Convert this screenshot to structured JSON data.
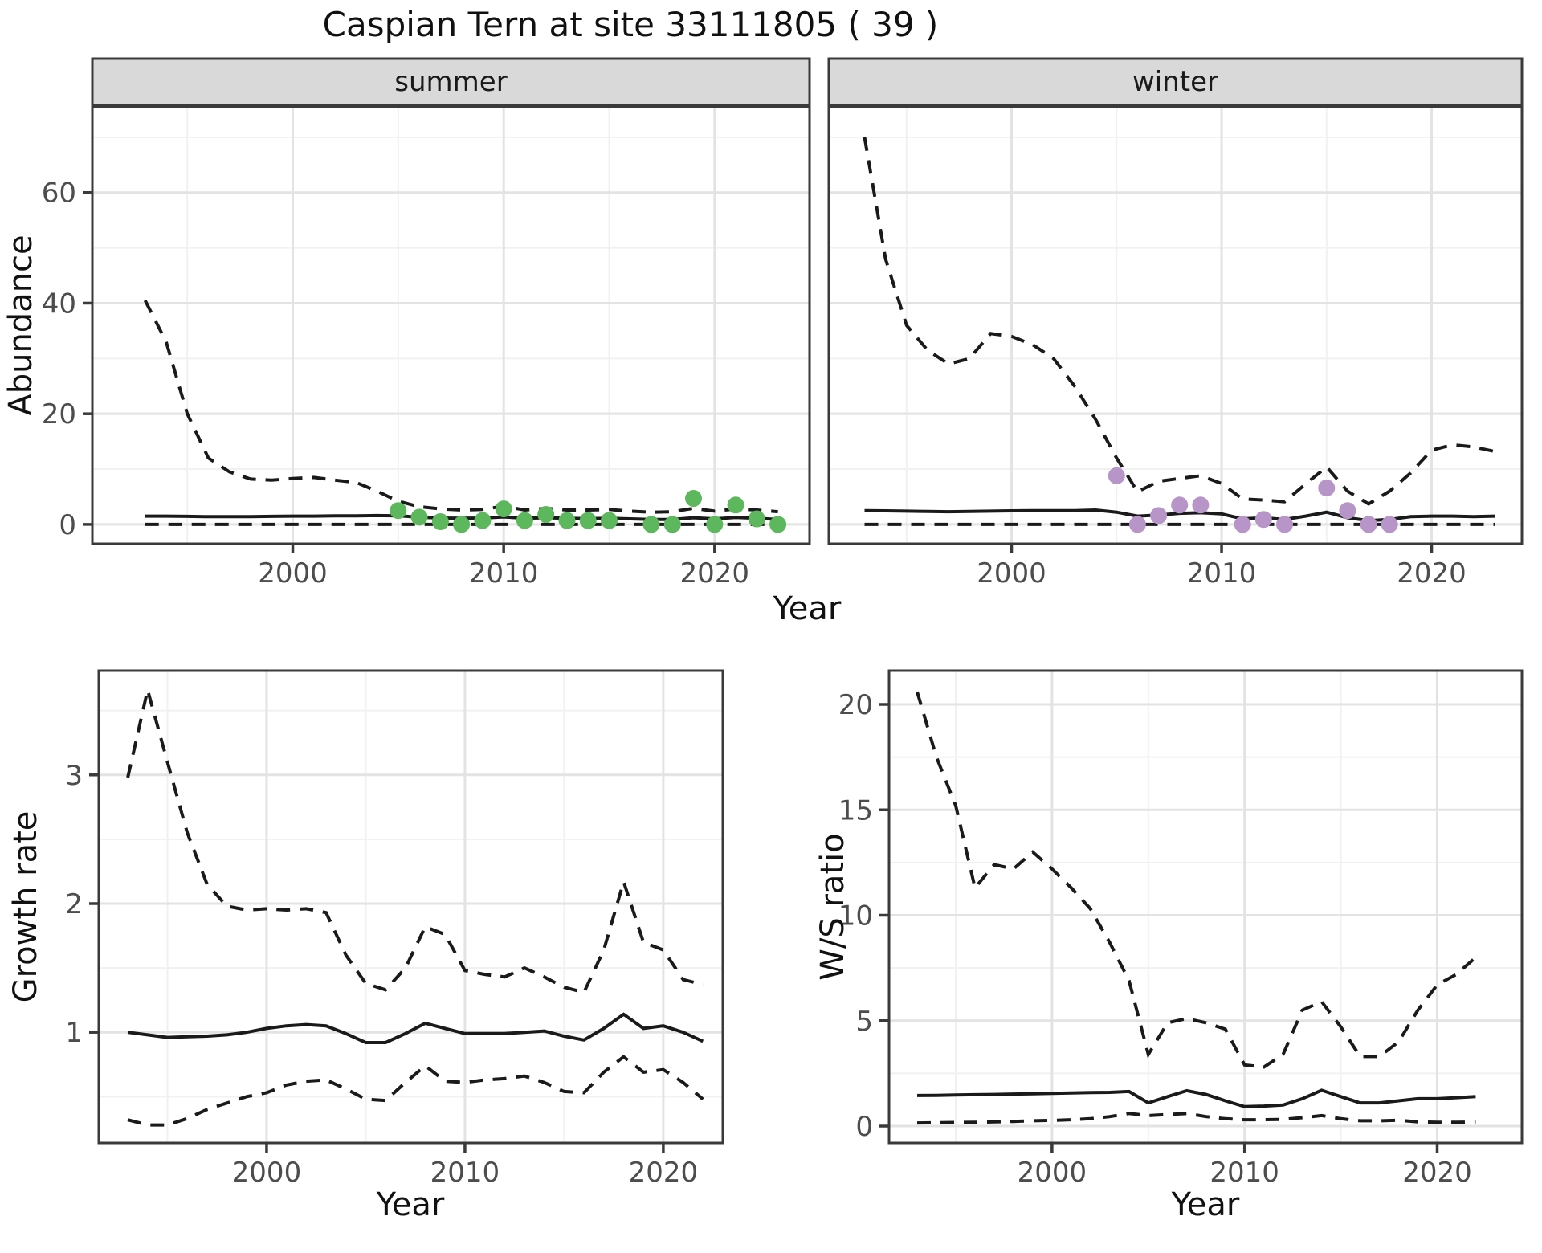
{
  "figure": {
    "title": "Caspian Tern at site 33111805 ( 39 )",
    "background": "#ffffff"
  },
  "labels": {
    "strip_summer": "summer",
    "strip_winter": "winter",
    "ylabel_abundance": "Abundance",
    "ylabel_growth": "Growth rate",
    "ylabel_ws": "W/S ratio",
    "xlabel_year_top": "Year",
    "xlabel_year_growth": "Year",
    "xlabel_year_ws": "Year"
  },
  "colors": {
    "summer_points": "#5db75c",
    "winter_points": "#b795c8",
    "line": "#1a1a1a",
    "strip_bg": "#d9d9d9",
    "panel_border": "#3a3a3a",
    "grid_major": "#e3e3e3",
    "grid_minor": "#f1f1f1",
    "tick_text": "#4d4d4d"
  },
  "chart_data": [
    {
      "id": "abundance-summer",
      "type": "line",
      "facet": "summer",
      "title": "Caspian Tern at site 33111805 ( 39 )",
      "xlabel": "Year",
      "ylabel": "Abundance",
      "legend_position": "none",
      "grid": true,
      "xlim": [
        1990.5,
        2024.5
      ],
      "ylim": [
        -3.5,
        75.5
      ],
      "xticks": [
        2000,
        2010,
        2020
      ],
      "xminor": [
        1995,
        2005,
        2015
      ],
      "yticks": [
        0,
        20,
        40,
        60
      ],
      "yminor": [
        10,
        30,
        50,
        70
      ],
      "y_labels": true,
      "series": [
        {
          "name": "upper_95ci",
          "style": "dashed",
          "x": [
            1993,
            1994,
            1995,
            1996,
            1997,
            1998,
            1999,
            2000,
            2001,
            2002,
            2003,
            2004,
            2005,
            2006,
            2007,
            2008,
            2009,
            2010,
            2011,
            2012,
            2013,
            2014,
            2015,
            2016,
            2017,
            2018,
            2019,
            2020,
            2021,
            2022,
            2023
          ],
          "y": [
            40.5,
            33,
            20,
            12,
            9.5,
            8.2,
            8.0,
            8.3,
            8.5,
            8.0,
            7.6,
            6.0,
            4.2,
            3.2,
            2.8,
            2.6,
            2.7,
            3.3,
            2.6,
            2.9,
            2.6,
            2.6,
            2.7,
            2.4,
            2.2,
            2.3,
            2.9,
            2.4,
            2.8,
            2.6,
            2.3
          ]
        },
        {
          "name": "median",
          "style": "solid",
          "x": [
            1993,
            1994,
            1995,
            1996,
            1997,
            1998,
            1999,
            2000,
            2001,
            2002,
            2003,
            2004,
            2005,
            2006,
            2007,
            2008,
            2009,
            2010,
            2011,
            2012,
            2013,
            2014,
            2015,
            2016,
            2017,
            2018,
            2019,
            2020,
            2021,
            2022,
            2023
          ],
          "y": [
            1.5,
            1.5,
            1.45,
            1.4,
            1.4,
            1.4,
            1.45,
            1.5,
            1.5,
            1.55,
            1.55,
            1.6,
            1.55,
            1.3,
            1.15,
            1.1,
            1.15,
            1.35,
            1.1,
            1.2,
            1.1,
            1.05,
            1.1,
            1.0,
            0.9,
            0.9,
            1.2,
            1.0,
            1.25,
            1.1,
            0.9
          ]
        },
        {
          "name": "lower_95ci",
          "style": "dashed",
          "x": [
            1993,
            1994,
            1995,
            1996,
            1997,
            1998,
            1999,
            2000,
            2001,
            2002,
            2003,
            2004,
            2005,
            2006,
            2007,
            2008,
            2009,
            2010,
            2011,
            2012,
            2013,
            2014,
            2015,
            2016,
            2017,
            2018,
            2019,
            2020,
            2021,
            2022,
            2023
          ],
          "y": [
            0,
            0,
            0,
            0,
            0,
            0,
            0,
            0,
            0,
            0,
            0,
            0,
            0,
            0,
            0,
            0,
            0,
            0,
            0,
            0,
            0,
            0,
            0,
            0,
            0,
            0,
            0,
            0,
            0,
            0,
            0
          ]
        }
      ],
      "points": {
        "name": "observed_counts",
        "color_key": "summer_points",
        "x": [
          2005,
          2006,
          2007,
          2008,
          2009,
          2010,
          2011,
          2012,
          2013,
          2014,
          2015,
          2017,
          2018,
          2019,
          2020,
          2021,
          2022,
          2023
        ],
        "y": [
          2.5,
          1.3,
          0.5,
          0,
          0.7,
          2.8,
          0.7,
          1.8,
          0.7,
          0.7,
          0.7,
          0,
          0,
          4.7,
          0,
          3.5,
          1.0,
          0
        ]
      }
    },
    {
      "id": "abundance-winter",
      "type": "line",
      "facet": "winter",
      "xlabel": "Year",
      "ylabel": "Abundance",
      "legend_position": "none",
      "grid": true,
      "xlim": [
        1991.3,
        2024.3
      ],
      "ylim": [
        -3.5,
        75.5
      ],
      "xticks": [
        2000,
        2010,
        2020
      ],
      "xminor": [
        1995,
        2005,
        2015
      ],
      "yticks": [
        0,
        20,
        40,
        60
      ],
      "yminor": [
        10,
        30,
        50,
        70
      ],
      "y_labels": false,
      "series": [
        {
          "name": "upper_95ci",
          "style": "dashed",
          "x": [
            1993,
            1994,
            1995,
            1996,
            1997,
            1998,
            1999,
            2000,
            2001,
            2002,
            2003,
            2004,
            2005,
            2006,
            2007,
            2008,
            2009,
            2010,
            2011,
            2012,
            2013,
            2014,
            2015,
            2016,
            2017,
            2018,
            2019,
            2020,
            2021,
            2022,
            2023
          ],
          "y": [
            70,
            48,
            36,
            31.5,
            29,
            30,
            34.5,
            34,
            32.5,
            30,
            25,
            19,
            12,
            5.9,
            7.8,
            8.3,
            8.8,
            7.4,
            4.6,
            4.4,
            4.1,
            7.3,
            10.4,
            6.0,
            3.7,
            6.0,
            9.3,
            13.4,
            14.4,
            14.0,
            13.2
          ]
        },
        {
          "name": "median",
          "style": "solid",
          "x": [
            1993,
            1994,
            1995,
            1996,
            1997,
            1998,
            1999,
            2000,
            2001,
            2002,
            2003,
            2004,
            2005,
            2006,
            2007,
            2008,
            2009,
            2010,
            2011,
            2012,
            2013,
            2014,
            2015,
            2016,
            2017,
            2018,
            2019,
            2020,
            2021,
            2022,
            2023
          ],
          "y": [
            2.5,
            2.45,
            2.4,
            2.35,
            2.3,
            2.35,
            2.4,
            2.45,
            2.5,
            2.5,
            2.5,
            2.6,
            2.2,
            1.5,
            1.7,
            2.0,
            2.1,
            1.9,
            1.0,
            1.2,
            0.9,
            1.5,
            2.2,
            1.2,
            0.7,
            0.9,
            1.4,
            1.5,
            1.5,
            1.4,
            1.5
          ]
        },
        {
          "name": "lower_95ci",
          "style": "dashed",
          "x": [
            1993,
            1994,
            1995,
            1996,
            1997,
            1998,
            1999,
            2000,
            2001,
            2002,
            2003,
            2004,
            2005,
            2006,
            2007,
            2008,
            2009,
            2010,
            2011,
            2012,
            2013,
            2014,
            2015,
            2016,
            2017,
            2018,
            2019,
            2020,
            2021,
            2022,
            2023
          ],
          "y": [
            0,
            0,
            0,
            0,
            0,
            0,
            0,
            0,
            0,
            0,
            0,
            0,
            0,
            0,
            0,
            0,
            0,
            0,
            0,
            0,
            0,
            0,
            0,
            0,
            0,
            0,
            0,
            0,
            0,
            0,
            0
          ]
        }
      ],
      "points": {
        "name": "observed_counts",
        "color_key": "winter_points",
        "x": [
          2005,
          2006,
          2007,
          2008,
          2009,
          2011,
          2012,
          2013,
          2015,
          2016,
          2017,
          2018
        ],
        "y": [
          8.8,
          0,
          1.6,
          3.5,
          3.5,
          0,
          0.9,
          0,
          6.6,
          2.5,
          0,
          0
        ]
      }
    },
    {
      "id": "growth-rate",
      "type": "line",
      "facet": null,
      "xlabel": "Year",
      "ylabel": "Growth rate",
      "legend_position": "none",
      "grid": true,
      "xlim": [
        1991.54,
        2023.0
      ],
      "ylim": [
        0.14,
        3.81
      ],
      "xticks": [
        2000,
        2010,
        2020
      ],
      "xminor": [
        1995,
        2005,
        2015
      ],
      "yticks": [
        1,
        2,
        3
      ],
      "yminor": [
        0.5,
        1.5,
        2.5,
        3.5
      ],
      "y_labels": true,
      "series": [
        {
          "name": "upper_95ci",
          "style": "dashed",
          "x": [
            1993,
            1994,
            1995,
            1996,
            1997,
            1998,
            1999,
            2000,
            2001,
            2002,
            2003,
            2004,
            2005,
            2006,
            2007,
            2008,
            2009,
            2010,
            2011,
            2012,
            2013,
            2014,
            2015,
            2016,
            2017,
            2018,
            2019,
            2020,
            2021,
            2022
          ],
          "y": [
            2.98,
            3.66,
            3.1,
            2.55,
            2.15,
            1.98,
            1.95,
            1.96,
            1.95,
            1.96,
            1.93,
            1.6,
            1.38,
            1.33,
            1.5,
            1.82,
            1.76,
            1.48,
            1.45,
            1.43,
            1.5,
            1.43,
            1.35,
            1.31,
            1.64,
            2.17,
            1.7,
            1.64,
            1.41,
            1.37
          ]
        },
        {
          "name": "median",
          "style": "solid",
          "x": [
            1993,
            1994,
            1995,
            1996,
            1997,
            1998,
            1999,
            2000,
            2001,
            2002,
            2003,
            2004,
            2005,
            2006,
            2007,
            2008,
            2009,
            2010,
            2011,
            2012,
            2013,
            2014,
            2015,
            2016,
            2017,
            2018,
            2019,
            2020,
            2021,
            2022
          ],
          "y": [
            1.0,
            0.98,
            0.96,
            0.965,
            0.97,
            0.98,
            1.0,
            1.03,
            1.05,
            1.06,
            1.05,
            0.99,
            0.92,
            0.92,
            0.99,
            1.07,
            1.03,
            0.99,
            0.99,
            0.99,
            1.0,
            1.01,
            0.97,
            0.94,
            1.03,
            1.14,
            1.03,
            1.05,
            1.0,
            0.93
          ]
        },
        {
          "name": "lower_95ci",
          "style": "dashed",
          "x": [
            1993,
            1994,
            1995,
            1996,
            1997,
            1998,
            1999,
            2000,
            2001,
            2002,
            2003,
            2004,
            2005,
            2006,
            2007,
            2008,
            2009,
            2010,
            2011,
            2012,
            2013,
            2014,
            2015,
            2016,
            2017,
            2018,
            2019,
            2020,
            2021,
            2022
          ],
          "y": [
            0.32,
            0.28,
            0.28,
            0.33,
            0.4,
            0.45,
            0.5,
            0.53,
            0.59,
            0.62,
            0.63,
            0.56,
            0.48,
            0.47,
            0.61,
            0.74,
            0.62,
            0.61,
            0.63,
            0.64,
            0.66,
            0.61,
            0.54,
            0.53,
            0.69,
            0.81,
            0.69,
            0.71,
            0.61,
            0.48
          ]
        }
      ],
      "points": null
    },
    {
      "id": "ws-ratio",
      "type": "line",
      "facet": null,
      "xlabel": "Year",
      "ylabel": "W/S ratio",
      "legend_position": "none",
      "grid": true,
      "xlim": [
        1991.54,
        2024.4
      ],
      "ylim": [
        -0.8,
        21.6
      ],
      "xticks": [
        2000,
        2010,
        2020
      ],
      "xminor": [
        1995,
        2005,
        2015
      ],
      "yticks": [
        0,
        5,
        10,
        15,
        20
      ],
      "yminor": [
        2.5,
        7.5,
        12.5,
        17.5
      ],
      "y_labels": true,
      "series": [
        {
          "name": "upper_95ci",
          "style": "dashed",
          "x": [
            1993,
            1994,
            1995,
            1996,
            1997,
            1998,
            1999,
            2000,
            2001,
            2002,
            2003,
            2004,
            2005,
            2006,
            2007,
            2008,
            2009,
            2010,
            2011,
            2012,
            2013,
            2014,
            2015,
            2016,
            2017,
            2018,
            2019,
            2020,
            2021,
            2022
          ],
          "y": [
            20.6,
            17.5,
            15.2,
            11.3,
            12.4,
            12.2,
            13.0,
            12.2,
            11.3,
            10.3,
            8.7,
            6.9,
            3.4,
            4.9,
            5.1,
            4.9,
            4.6,
            2.9,
            2.8,
            3.4,
            5.5,
            5.9,
            4.7,
            3.3,
            3.3,
            4.0,
            5.5,
            6.7,
            7.2,
            8.0
          ]
        },
        {
          "name": "median",
          "style": "solid",
          "x": [
            1993,
            1994,
            1995,
            1996,
            1997,
            1998,
            1999,
            2000,
            2001,
            2002,
            2003,
            2004,
            2005,
            2006,
            2007,
            2008,
            2009,
            2010,
            2011,
            2012,
            2013,
            2014,
            2015,
            2016,
            2017,
            2018,
            2019,
            2020,
            2021,
            2022
          ],
          "y": [
            1.45,
            1.46,
            1.48,
            1.49,
            1.5,
            1.52,
            1.53,
            1.55,
            1.57,
            1.59,
            1.6,
            1.64,
            1.1,
            1.4,
            1.68,
            1.5,
            1.2,
            0.92,
            0.95,
            1.0,
            1.3,
            1.7,
            1.4,
            1.1,
            1.1,
            1.2,
            1.3,
            1.3,
            1.35,
            1.4
          ]
        },
        {
          "name": "lower_95ci",
          "style": "dashed",
          "x": [
            1993,
            1994,
            1995,
            1996,
            1997,
            1998,
            1999,
            2000,
            2001,
            2002,
            2003,
            2004,
            2005,
            2006,
            2007,
            2008,
            2009,
            2010,
            2011,
            2012,
            2013,
            2014,
            2015,
            2016,
            2017,
            2018,
            2019,
            2020,
            2021,
            2022
          ],
          "y": [
            0.15,
            0.16,
            0.17,
            0.18,
            0.2,
            0.22,
            0.25,
            0.27,
            0.3,
            0.35,
            0.45,
            0.6,
            0.5,
            0.55,
            0.6,
            0.45,
            0.35,
            0.3,
            0.3,
            0.32,
            0.4,
            0.5,
            0.35,
            0.25,
            0.25,
            0.28,
            0.2,
            0.18,
            0.18,
            0.2
          ]
        }
      ],
      "points": null
    }
  ]
}
